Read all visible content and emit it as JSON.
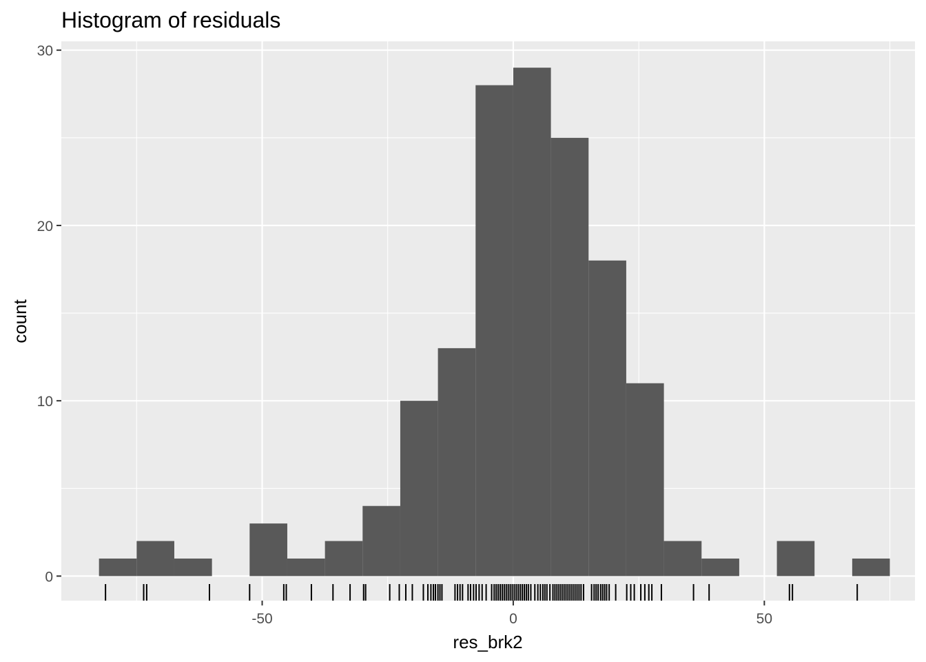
{
  "chart_data": {
    "type": "histogram",
    "title": "Histogram of residuals",
    "xlabel": "res_brk2",
    "ylabel": "count",
    "xlim": [
      -90,
      80
    ],
    "ylim": [
      -1.4,
      30.5
    ],
    "binwidth": 7.5,
    "x_ticks": [
      -50,
      0,
      50
    ],
    "x_tick_labels": [
      "-50",
      "0",
      "50"
    ],
    "y_ticks": [
      0,
      10,
      20,
      30
    ],
    "y_tick_labels": [
      "0",
      "10",
      "20",
      "30"
    ],
    "bars": [
      {
        "x0": -82.5,
        "x1": -75,
        "count": 1
      },
      {
        "x0": -75,
        "x1": -67.5,
        "count": 2
      },
      {
        "x0": -67.5,
        "x1": -60,
        "count": 1
      },
      {
        "x0": -60,
        "x1": -52.5,
        "count": 0
      },
      {
        "x0": -52.5,
        "x1": -45,
        "count": 3
      },
      {
        "x0": -45,
        "x1": -37.5,
        "count": 1
      },
      {
        "x0": -37.5,
        "x1": -30,
        "count": 2
      },
      {
        "x0": -30,
        "x1": -22.5,
        "count": 4
      },
      {
        "x0": -22.5,
        "x1": -15,
        "count": 10
      },
      {
        "x0": -15,
        "x1": -7.5,
        "count": 13
      },
      {
        "x0": -7.5,
        "x1": 0,
        "count": 28
      },
      {
        "x0": 0,
        "x1": 7.5,
        "count": 29
      },
      {
        "x0": 7.5,
        "x1": 15,
        "count": 25
      },
      {
        "x0": 15,
        "x1": 22.5,
        "count": 18
      },
      {
        "x0": 22.5,
        "x1": 30,
        "count": 11
      },
      {
        "x0": 30,
        "x1": 37.5,
        "count": 2
      },
      {
        "x0": 37.5,
        "x1": 45,
        "count": 1
      },
      {
        "x0": 45,
        "x1": 52.5,
        "count": 0
      },
      {
        "x0": 52.5,
        "x1": 60,
        "count": 2
      },
      {
        "x0": 60,
        "x1": 67.5,
        "count": 0
      },
      {
        "x0": 67.5,
        "x1": 75,
        "count": 1
      }
    ],
    "rug": [
      -81.2,
      -73.6,
      -73.0,
      -60.5,
      -52.5,
      -45.7,
      -45.2,
      -40.2,
      -35.9,
      -32.5,
      -29.8,
      -29.4,
      -24.6,
      -22.7,
      -21.4,
      -20.1,
      -17.9,
      -17.0,
      -16.4,
      -15.9,
      -15.5,
      -15.0,
      -14.6,
      -14.2,
      -11.6,
      -11.1,
      -10.6,
      -10.1,
      -9.0,
      -8.5,
      -7.9,
      -7.4,
      -6.8,
      -6.2,
      -5.4,
      -4.3,
      -3.8,
      -3.4,
      -3.0,
      -2.6,
      -2.2,
      -1.8,
      -1.4,
      -1.0,
      -0.6,
      -0.2,
      0.2,
      0.6,
      1.0,
      1.4,
      1.8,
      2.2,
      2.6,
      3.0,
      3.5,
      4.3,
      4.9,
      5.4,
      5.9,
      6.3,
      6.7,
      7.3,
      7.9,
      8.3,
      8.7,
      9.1,
      9.5,
      9.9,
      10.3,
      10.7,
      11.1,
      11.5,
      11.9,
      12.3,
      12.7,
      13.1,
      13.5,
      14.0,
      15.6,
      16.1,
      16.5,
      16.9,
      17.4,
      17.8,
      18.2,
      18.6,
      19.1,
      20.4,
      22.6,
      23.4,
      24.1,
      25.4,
      26.2,
      27.0,
      27.6,
      29.5,
      35.9,
      39.0,
      55.0,
      55.6,
      68.5
    ]
  }
}
